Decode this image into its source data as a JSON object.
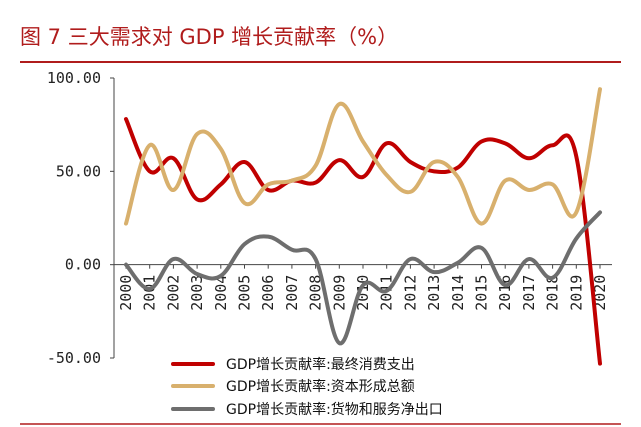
{
  "chart_data": {
    "type": "line",
    "title": "图 7   三大需求对 GDP 增长贡献率（%）",
    "categories": [
      "2000",
      "2001",
      "2002",
      "2003",
      "2004",
      "2005",
      "2006",
      "2007",
      "2008",
      "2009",
      "2010",
      "2011",
      "2012",
      "2013",
      "2014",
      "2015",
      "2016",
      "2017",
      "2018",
      "2019",
      "2020"
    ],
    "ylim": [
      -50,
      100
    ],
    "yticks": [
      "100.00",
      "50.00",
      "0.00",
      "-50.00"
    ],
    "ytick_values": [
      100,
      50,
      0,
      -50
    ],
    "grid": false,
    "legend_position": "bottom",
    "series": [
      {
        "name": "GDP增长贡献率:最终消费支出",
        "color": "#c00000",
        "values": [
          78,
          50,
          57,
          35,
          43,
          55,
          40,
          45,
          44,
          56,
          47,
          65,
          55,
          50,
          52,
          66,
          65,
          57,
          64,
          58,
          -53
        ]
      },
      {
        "name": "GDP增长贡献率:资本形成总额",
        "color": "#d8b06d",
        "values": [
          22,
          64,
          40,
          70,
          62,
          33,
          43,
          45,
          53,
          86,
          66,
          48,
          39,
          55,
          47,
          22,
          45,
          40,
          43,
          28,
          94
        ]
      },
      {
        "name": "GDP增长贡献率:货物和服务净出口",
        "color": "#6e6e6e",
        "values": [
          0,
          -13,
          3,
          -5,
          -6,
          11,
          15,
          8,
          3,
          -42,
          -11,
          -14,
          3,
          -4,
          1,
          9,
          -11,
          3,
          -7,
          14,
          28
        ]
      }
    ]
  }
}
